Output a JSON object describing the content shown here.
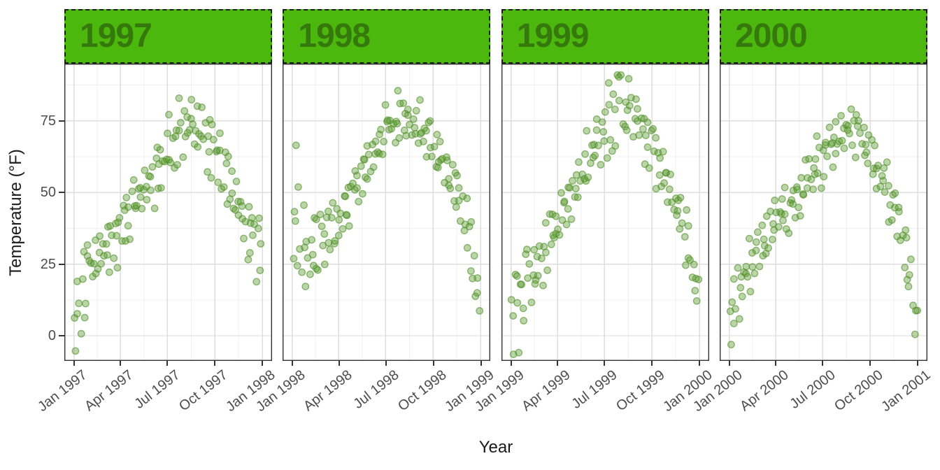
{
  "figure": {
    "kind": "faceted-scatter",
    "background": "#ffffff"
  },
  "colors": {
    "strip_fill": "#4cb80e",
    "strip_text": "#35790d",
    "strip_border": "#1a1a1a",
    "panel_border": "#333333",
    "grid_major": "#dedede",
    "grid_minor": "#f0f0f0",
    "axis_text": "#4d4d4d",
    "title_text": "#1a1a1a",
    "tick_mark": "#333333",
    "point_fill": "#5a9a2f",
    "point_stroke": "#4f8d27"
  },
  "chart_data": {
    "type": "scatter",
    "title": "",
    "xlabel": "Year",
    "ylabel": "Temperature (°F)",
    "grid": true,
    "legend": false,
    "y_ticks": [
      0,
      25,
      50,
      75
    ],
    "y_tick_labels": [
      "75",
      "50",
      "25",
      "0"
    ],
    "y_minor_gridlines": [
      12.5,
      37.5,
      62.5,
      87.5
    ],
    "ylim": [
      -8.8,
      95
    ],
    "x_tick_days": [
      0,
      90,
      181,
      273,
      365
    ],
    "x_minor_days": [
      45,
      135.5,
      227,
      319
    ],
    "point_style": {
      "shape": "circle",
      "alpha": 0.42,
      "color": "#5a9a2f"
    },
    "facets": [
      {
        "label": "1997",
        "x_tick_labels": [
          "Jan 1997",
          "Apr 1997",
          "Jul 1997",
          "Oct 1997",
          "Jan 1998"
        ],
        "month_start_mean_f": [
          3,
          24,
          30,
          37,
          48,
          55,
          63,
          75,
          71,
          65,
          51,
          39,
          29
        ],
        "month_spread_f": [
          8,
          5,
          5,
          5,
          4,
          5,
          8,
          6,
          6,
          6,
          5,
          6
        ],
        "observed_min_f": -4,
        "observed_max_f": 86
      },
      {
        "label": "1998",
        "x_tick_labels": [
          "Jan 1998",
          "Apr 1998",
          "Jul 1998",
          "Oct 1998",
          "Jan 1999"
        ],
        "month_start_mean_f": [
          44,
          29,
          33,
          41,
          51,
          62,
          71,
          76,
          73,
          67,
          56,
          43,
          9
        ],
        "month_spread_f": [
          12,
          8,
          6,
          5,
          5,
          5,
          5,
          4,
          5,
          5,
          5,
          7
        ],
        "observed_min_f": 5,
        "observed_max_f": 83
      },
      {
        "label": "1999",
        "x_tick_labels": [
          "Jan 1999",
          "Apr 1999",
          "Jul 1999",
          "Oct 1999",
          "Jan 2000"
        ],
        "month_start_mean_f": [
          4,
          17,
          29,
          40,
          51,
          62,
          73,
          81,
          76,
          64,
          53,
          39,
          11
        ],
        "month_spread_f": [
          8,
          7,
          6,
          5,
          5,
          5,
          7,
          6,
          5,
          5,
          5,
          7
        ],
        "observed_min_f": -4,
        "observed_max_f": 90
      },
      {
        "label": "2000",
        "x_tick_labels": [
          "Jan 2000",
          "Apr 2000",
          "Jul 2000",
          "Oct 2000",
          "Jan 2001"
        ],
        "month_start_mean_f": [
          7,
          21,
          31,
          41,
          44,
          55,
          63,
          70,
          73,
          63,
          51,
          36,
          4
        ],
        "month_spread_f": [
          7,
          6,
          6,
          5,
          5,
          5,
          5,
          4,
          5,
          5,
          6,
          7
        ],
        "observed_min_f": -3,
        "observed_max_f": 82
      }
    ]
  }
}
